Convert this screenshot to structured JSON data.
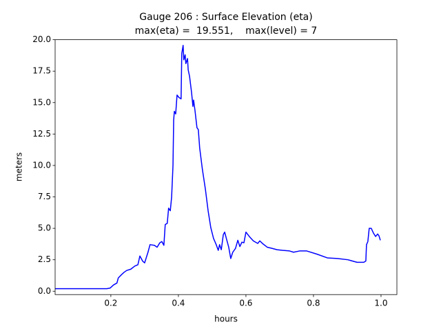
{
  "chart_data": {
    "type": "line",
    "title": [
      "Gauge 206 : Surface Elevation (eta)",
      "max(eta) =  19.551,    max(level) = 7"
    ],
    "xlabel": "hours",
    "ylabel": "meters",
    "xlim": [
      0.035,
      1.047
    ],
    "ylim": [
      -0.27,
      20.0
    ],
    "xticks": [
      0.2,
      0.4,
      0.6,
      0.8,
      {
        "value": 1.0,
        "label": "1.0"
      }
    ],
    "yticks": [
      {
        "value": 0,
        "label": "0.0"
      },
      2.5,
      {
        "value": 5,
        "label": "5.0"
      },
      7.5,
      {
        "value": 10,
        "label": "10.0"
      },
      12.5,
      {
        "value": 15,
        "label": "15.0"
      },
      17.5,
      {
        "value": 20,
        "label": "20.0"
      }
    ],
    "grid": false,
    "series": [
      {
        "name": "eta",
        "color": "#0000ff",
        "x": [
          0.035,
          0.188,
          0.198,
          0.208,
          0.218,
          0.222,
          0.231,
          0.239,
          0.247,
          0.259,
          0.271,
          0.28,
          0.286,
          0.294,
          0.3,
          0.31,
          0.316,
          0.329,
          0.337,
          0.345,
          0.351,
          0.357,
          0.361,
          0.367,
          0.371,
          0.376,
          0.38,
          0.384,
          0.386,
          0.388,
          0.392,
          0.396,
          0.402,
          0.408,
          0.41,
          0.414,
          0.416,
          0.42,
          0.422,
          0.427,
          0.429,
          0.433,
          0.439,
          0.443,
          0.445,
          0.449,
          0.455,
          0.459,
          0.463,
          0.471,
          0.48,
          0.488,
          0.496,
          0.504,
          0.512,
          0.518,
          0.522,
          0.527,
          0.533,
          0.537,
          0.543,
          0.549,
          0.555,
          0.561,
          0.569,
          0.576,
          0.582,
          0.588,
          0.594,
          0.6,
          0.61,
          0.622,
          0.635,
          0.641,
          0.651,
          0.663,
          0.678,
          0.692,
          0.708,
          0.729,
          0.741,
          0.759,
          0.78,
          0.81,
          0.841,
          0.871,
          0.902,
          0.929,
          0.949,
          0.955,
          0.957,
          0.961,
          0.965,
          0.971,
          0.978,
          0.984,
          0.99,
          0.994,
          0.998
        ],
        "values": [
          0.2,
          0.2,
          0.25,
          0.5,
          0.65,
          1.05,
          1.3,
          1.5,
          1.65,
          1.75,
          2.0,
          2.1,
          2.8,
          2.4,
          2.25,
          3.1,
          3.7,
          3.65,
          3.5,
          3.85,
          3.95,
          3.65,
          5.3,
          5.4,
          6.6,
          6.4,
          7.5,
          10.0,
          13.6,
          14.3,
          14.1,
          15.6,
          15.4,
          15.3,
          18.9,
          19.55,
          18.4,
          18.8,
          18.1,
          18.5,
          17.6,
          17.1,
          15.8,
          14.7,
          15.2,
          14.4,
          13.0,
          12.85,
          11.4,
          9.7,
          8.1,
          6.4,
          5.05,
          4.2,
          3.7,
          3.25,
          3.7,
          3.3,
          4.5,
          4.7,
          4.1,
          3.5,
          2.6,
          3.1,
          3.4,
          4.05,
          3.55,
          3.9,
          3.85,
          4.7,
          4.35,
          4.0,
          3.8,
          4.0,
          3.75,
          3.5,
          3.4,
          3.3,
          3.25,
          3.2,
          3.1,
          3.2,
          3.2,
          2.95,
          2.65,
          2.6,
          2.5,
          2.3,
          2.3,
          2.4,
          3.7,
          3.95,
          5.0,
          5.0,
          4.6,
          4.35,
          4.55,
          4.4,
          4.05
        ]
      }
    ]
  }
}
